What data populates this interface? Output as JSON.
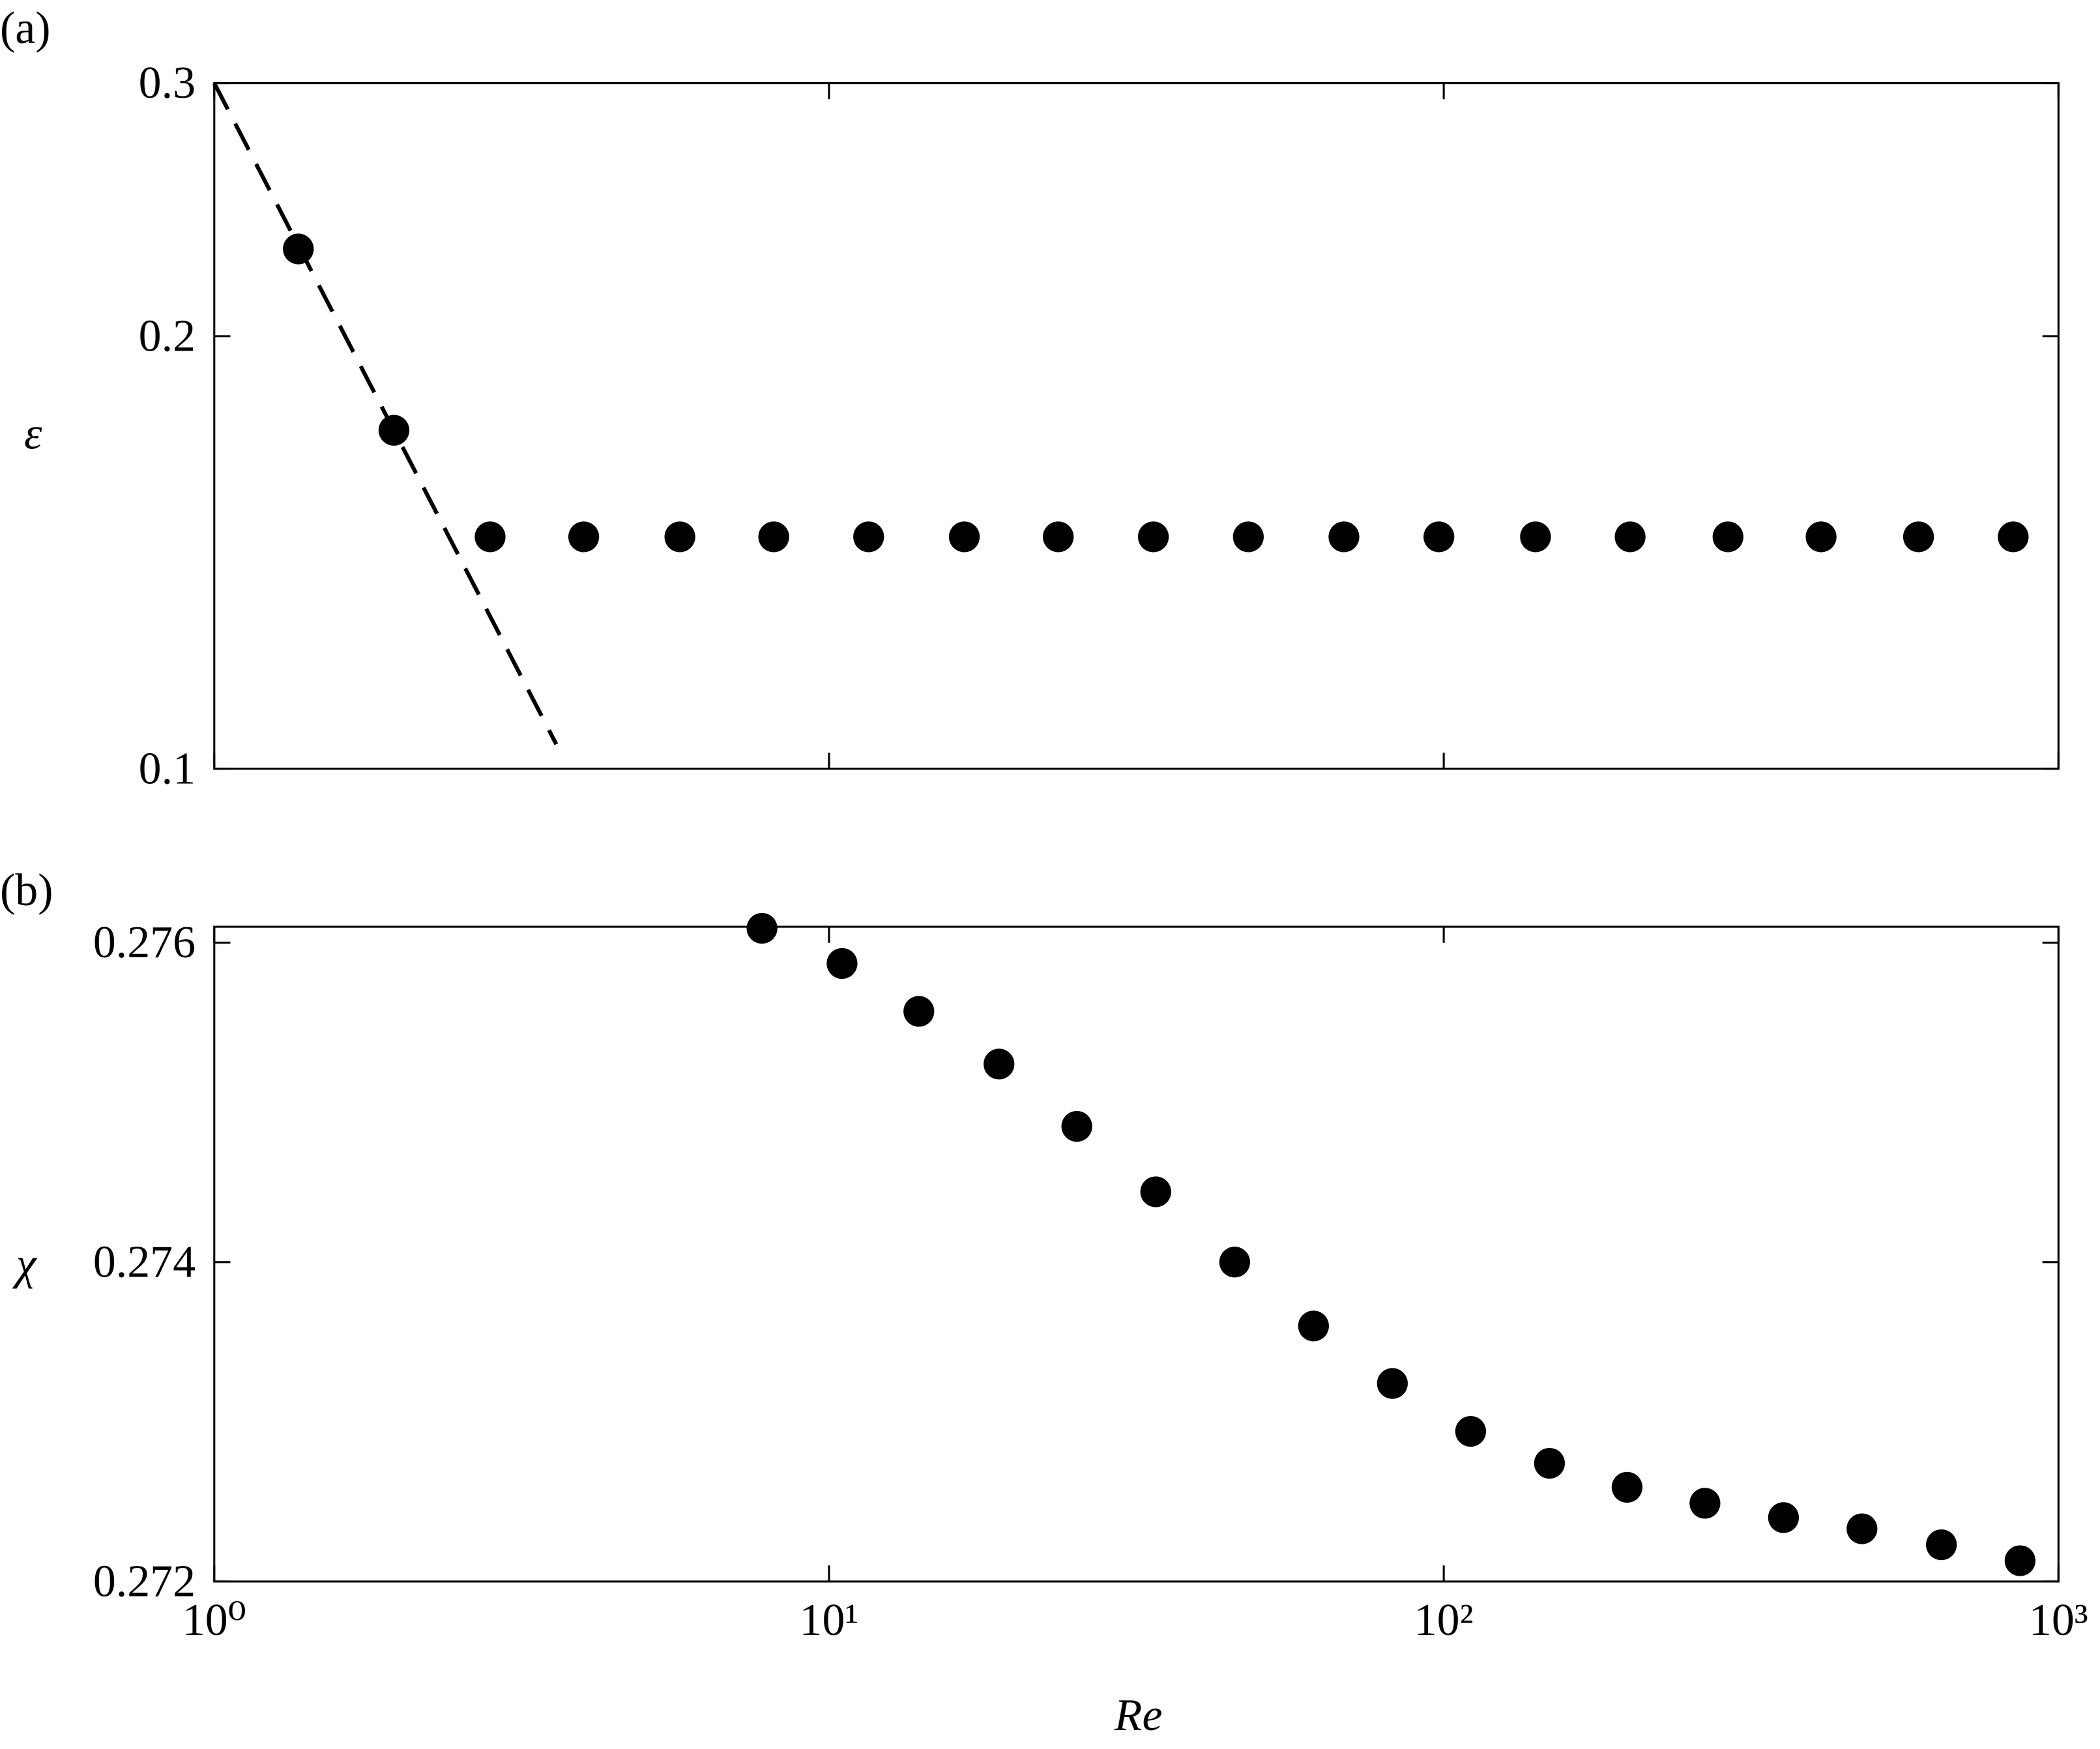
{
  "chart_data": [
    {
      "type": "scatter",
      "panel_label": "(a)",
      "ylabel": "ε",
      "color": "#000000",
      "xscale": "log",
      "yscale": "log",
      "xlim": [
        1,
        1000
      ],
      "ylim": [
        0.1,
        0.3
      ],
      "xticks": [
        1,
        10,
        100,
        1000
      ],
      "yticks": [
        0.1,
        0.2,
        0.3
      ],
      "x": [
        1.37,
        1.96,
        2.81,
        3.99,
        5.72,
        8.13,
        11.6,
        16.6,
        23.6,
        33.7,
        48.1,
        68.8,
        98.2,
        141,
        201,
        290,
        411,
        592,
        844
      ],
      "values": [
        0.23,
        0.172,
        0.145,
        0.145,
        0.145,
        0.145,
        0.145,
        0.145,
        0.145,
        0.145,
        0.145,
        0.145,
        0.145,
        0.145,
        0.145,
        0.145,
        0.145,
        0.145,
        0.145
      ],
      "lines": [
        {
          "x": [
            1,
            3.6
          ],
          "values": [
            0.3,
            0.104
          ],
          "dashed": true
        }
      ]
    },
    {
      "type": "scatter",
      "panel_label": "(b)",
      "ylabel": "χ",
      "xlabel": "Re",
      "color": "#000000",
      "xscale": "log",
      "yscale": "linear",
      "xlim": [
        1,
        1000
      ],
      "ylim": [
        0.272,
        0.2761
      ],
      "xticks": [
        {
          "value": 1,
          "label": "10⁰"
        },
        {
          "value": 10,
          "label": "10¹"
        },
        {
          "value": 100,
          "label": "10²"
        },
        {
          "value": 1000,
          "label": "10³"
        }
      ],
      "yticks": [
        0.272,
        0.274,
        0.276
      ],
      "x": [
        7.78,
        10.5,
        14.0,
        18.9,
        25.3,
        34.0,
        45.7,
        61.4,
        82.5,
        110.6,
        148.6,
        198.7,
        266,
        357,
        479,
        645,
        866
      ],
      "values": [
        0.27609,
        0.27587,
        0.27557,
        0.27524,
        0.27485,
        0.27444,
        0.274,
        0.2736,
        0.27324,
        0.27294,
        0.27274,
        0.27259,
        0.27249,
        0.2724,
        0.27233,
        0.27223,
        0.27213
      ]
    }
  ]
}
